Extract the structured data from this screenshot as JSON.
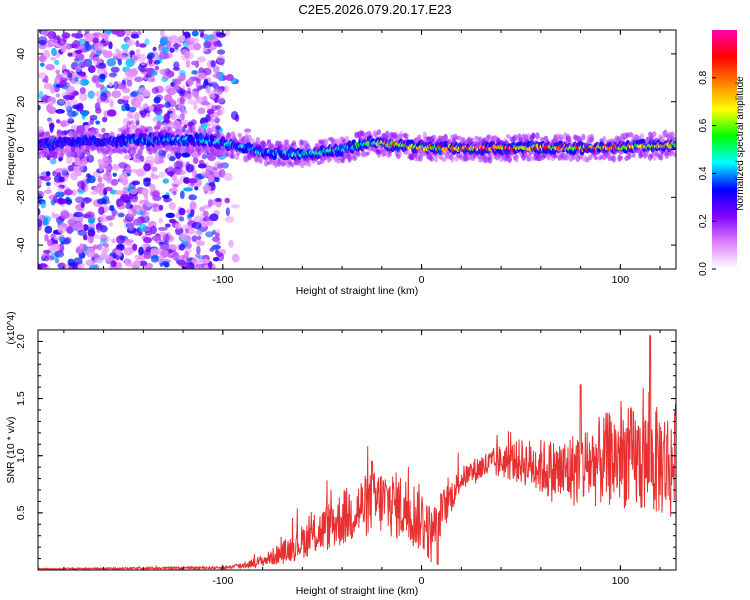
{
  "title": "C2E5.2026.079.20.17.E23",
  "chart_data": [
    {
      "type": "heatmap",
      "xlabel": "Height of straight line (km)",
      "ylabel": "Frequency (Hz)",
      "xlim": [
        -193,
        128
      ],
      "ylim": [
        -50,
        50
      ],
      "xticks": [
        -100,
        0,
        100
      ],
      "yticks": [
        -40,
        -20,
        0,
        20,
        40
      ],
      "colorbar": {
        "label": "Normalized spectral amplitude",
        "range": [
          0,
          1
        ],
        "ticks": [
          "0.0",
          "0.2",
          "0.4",
          "0.6",
          "0.8"
        ],
        "colors": [
          "#ffffff",
          "#e080ff",
          "#8000ff",
          "#0000ff",
          "#00ffff",
          "#00ff00",
          "#ffff00",
          "#ff8000",
          "#ff0000",
          "#ff00b0"
        ]
      },
      "ridge": {
        "description_points": [
          {
            "x": -193,
            "y": 2.0,
            "a": 0.35
          },
          {
            "x": -170,
            "y": 3.0,
            "a": 0.35
          },
          {
            "x": -140,
            "y": 4.0,
            "a": 0.4
          },
          {
            "x": -110,
            "y": 4.0,
            "a": 0.45
          },
          {
            "x": -95,
            "y": 2.0,
            "a": 0.45
          },
          {
            "x": -80,
            "y": -1.0,
            "a": 0.45
          },
          {
            "x": -60,
            "y": -2.0,
            "a": 0.5
          },
          {
            "x": -40,
            "y": 0.0,
            "a": 0.5
          },
          {
            "x": -25,
            "y": 3.0,
            "a": 0.55
          },
          {
            "x": -15,
            "y": 2.0,
            "a": 0.8
          },
          {
            "x": 0,
            "y": 1.0,
            "a": 0.7
          },
          {
            "x": 20,
            "y": 0.5,
            "a": 0.9
          },
          {
            "x": 40,
            "y": 0.5,
            "a": 0.9
          },
          {
            "x": 60,
            "y": 1.0,
            "a": 0.8
          },
          {
            "x": 80,
            "y": 0.5,
            "a": 0.85
          },
          {
            "x": 100,
            "y": 1.0,
            "a": 0.8
          },
          {
            "x": 128,
            "y": 2.0,
            "a": 0.75
          }
        ],
        "noise_region_x": [
          -193,
          -100
        ]
      }
    },
    {
      "type": "line",
      "xlabel": "Height of straight line (km)",
      "ylabel": "SNR (10 * v/v)",
      "y_multiplier": "(x10^4)",
      "xlim": [
        -193,
        128
      ],
      "ylim": [
        0,
        2.1
      ],
      "xticks": [
        -100,
        0,
        100
      ],
      "yticks": [
        "0.5",
        "1.0",
        "1.5",
        "2.0"
      ],
      "color": "#e83030",
      "envelope": [
        {
          "x": -193,
          "y": 0.01
        },
        {
          "x": -100,
          "y": 0.02
        },
        {
          "x": -90,
          "y": 0.04
        },
        {
          "x": -80,
          "y": 0.08
        },
        {
          "x": -70,
          "y": 0.15
        },
        {
          "x": -60,
          "y": 0.25
        },
        {
          "x": -50,
          "y": 0.35
        },
        {
          "x": -40,
          "y": 0.45
        },
        {
          "x": -30,
          "y": 0.55
        },
        {
          "x": -20,
          "y": 0.6
        },
        {
          "x": -10,
          "y": 0.55
        },
        {
          "x": 0,
          "y": 0.45
        },
        {
          "x": 5,
          "y": 0.3
        },
        {
          "x": 10,
          "y": 0.5
        },
        {
          "x": 20,
          "y": 0.8
        },
        {
          "x": 30,
          "y": 0.9
        },
        {
          "x": 40,
          "y": 0.95
        },
        {
          "x": 50,
          "y": 0.95
        },
        {
          "x": 60,
          "y": 0.9
        },
        {
          "x": 70,
          "y": 0.85
        },
        {
          "x": 80,
          "y": 0.9
        },
        {
          "x": 90,
          "y": 0.95
        },
        {
          "x": 100,
          "y": 1.0
        },
        {
          "x": 110,
          "y": 0.95
        },
        {
          "x": 120,
          "y": 0.95
        },
        {
          "x": 128,
          "y": 0.9
        }
      ],
      "noise_amplitude": [
        {
          "x": -193,
          "y": 0.005
        },
        {
          "x": -100,
          "y": 0.01
        },
        {
          "x": -80,
          "y": 0.05
        },
        {
          "x": -60,
          "y": 0.15
        },
        {
          "x": -40,
          "y": 0.25
        },
        {
          "x": -20,
          "y": 0.3
        },
        {
          "x": 0,
          "y": 0.3
        },
        {
          "x": 20,
          "y": 0.1
        },
        {
          "x": 40,
          "y": 0.15
        },
        {
          "x": 60,
          "y": 0.25
        },
        {
          "x": 80,
          "y": 0.35
        },
        {
          "x": 100,
          "y": 0.45
        },
        {
          "x": 128,
          "y": 0.5
        }
      ],
      "peaks": [
        {
          "x": -25,
          "y": 0.95
        },
        {
          "x": 8,
          "y": 0.05
        },
        {
          "x": 80,
          "y": 1.62
        },
        {
          "x": 115,
          "y": 2.05
        },
        {
          "x": 128,
          "y": 1.45
        }
      ]
    }
  ]
}
